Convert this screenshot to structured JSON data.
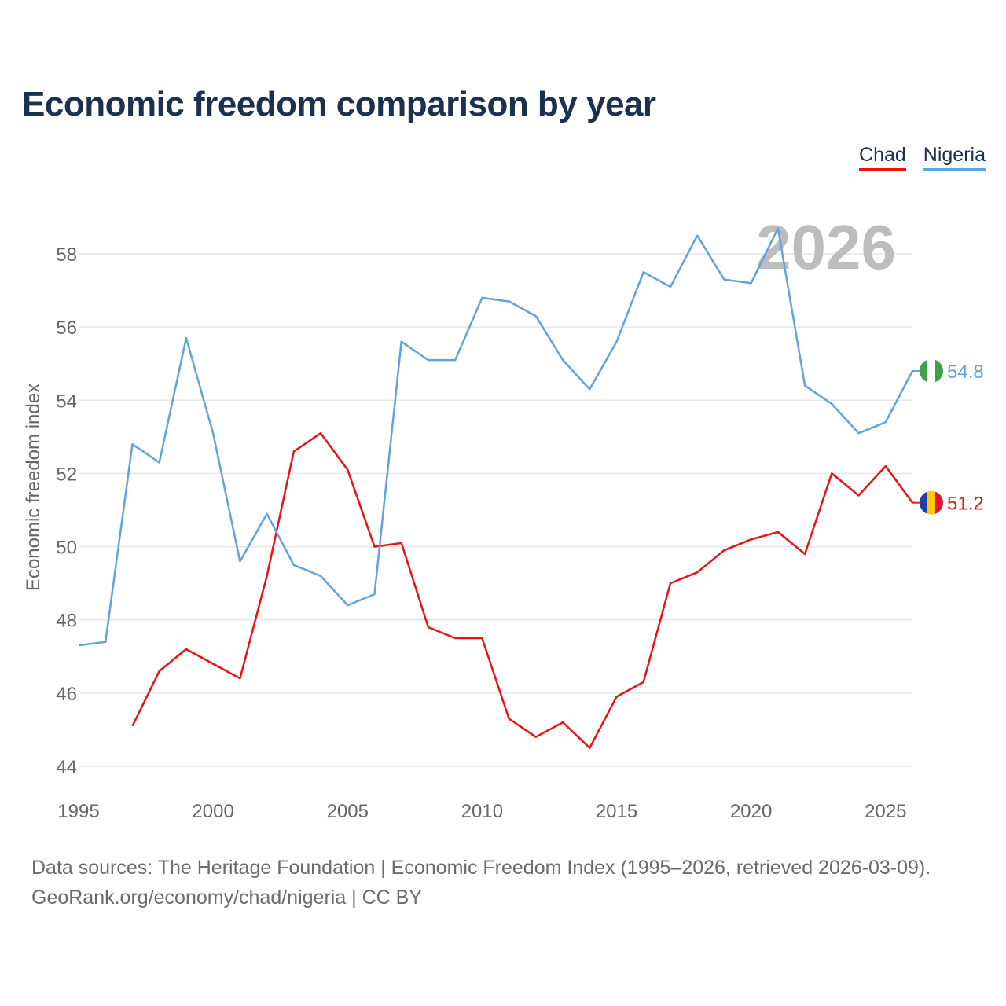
{
  "chart_data": {
    "type": "line",
    "title": "Economic freedom comparison by year",
    "xlabel": "",
    "ylabel": "Economic freedom index",
    "xlim": [
      1995,
      2026
    ],
    "ylim": [
      44,
      59
    ],
    "x_ticks": [
      "1995",
      "2000",
      "2005",
      "2010",
      "2015",
      "2020",
      "2025"
    ],
    "y_ticks": [
      "44",
      "46",
      "48",
      "50",
      "52",
      "54",
      "56",
      "58"
    ],
    "year_label": "2026",
    "x": [
      1995,
      1996,
      1997,
      1998,
      1999,
      2000,
      2001,
      2002,
      2003,
      2004,
      2005,
      2006,
      2007,
      2008,
      2009,
      2010,
      2011,
      2012,
      2013,
      2014,
      2015,
      2016,
      2017,
      2018,
      2019,
      2020,
      2021,
      2022,
      2023,
      2024,
      2025,
      2026
    ],
    "series": [
      {
        "name": "Chad",
        "color": "#ee1111",
        "end_label": "51.2",
        "flag": "chad-flag",
        "values": [
          null,
          null,
          45.1,
          46.6,
          47.2,
          46.8,
          46.4,
          49.2,
          52.6,
          53.1,
          52.1,
          50.0,
          50.1,
          47.8,
          47.5,
          47.5,
          45.3,
          44.8,
          45.2,
          44.5,
          45.9,
          46.3,
          49.0,
          49.3,
          49.9,
          50.2,
          50.4,
          49.8,
          52.0,
          51.4,
          52.2,
          51.2
        ]
      },
      {
        "name": "Nigeria",
        "color": "#5fa3e0",
        "end_label": "54.8",
        "flag": "nigeria-flag",
        "values": [
          47.3,
          47.4,
          52.8,
          52.3,
          55.7,
          53.1,
          49.6,
          50.9,
          49.5,
          49.2,
          48.4,
          48.7,
          55.6,
          55.1,
          55.1,
          56.8,
          56.7,
          56.3,
          55.1,
          54.3,
          55.6,
          57.5,
          57.1,
          58.5,
          57.3,
          57.2,
          58.7,
          54.4,
          53.9,
          53.1,
          53.4,
          54.8
        ]
      }
    ]
  },
  "legend": {
    "items": [
      {
        "label": "Chad",
        "color": "#ee1111"
      },
      {
        "label": "Nigeria",
        "color": "#5fa3e0"
      }
    ]
  },
  "sources": {
    "line1": "Data sources: The Heritage Foundation | Economic Freedom Index (1995–2026, retrieved 2026-03-09).",
    "line2": "GeoRank.org/economy/chad/nigeria | CC BY"
  }
}
